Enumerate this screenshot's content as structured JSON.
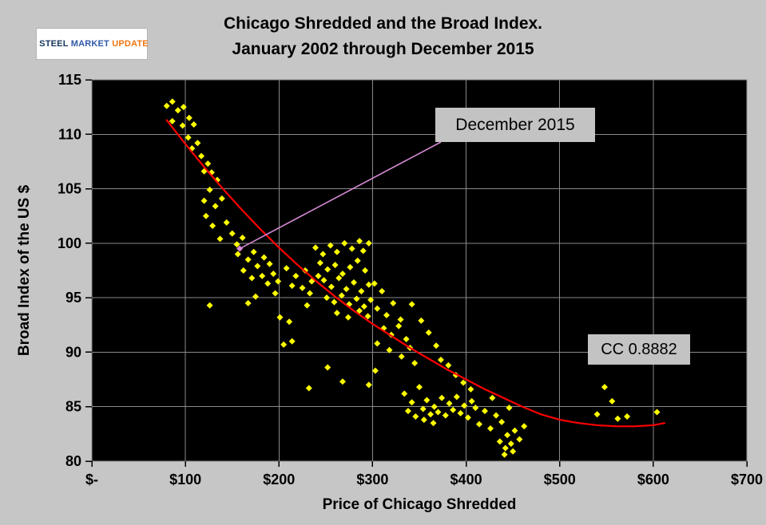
{
  "header": {
    "title_line1": "Chicago Shredded and the Broad Index.",
    "title_line2": "January 2002 through December 2015",
    "logo": {
      "word1": "STEEL",
      "word2": "MARKET",
      "word3": "UPDATE"
    }
  },
  "chart_data": {
    "type": "scatter",
    "title": "Chicago Shredded and the Broad Index. January 2002 through December 2015",
    "xlabel": "Price of Chicago Shredded",
    "ylabel": "Broad Index of the US $",
    "xlim": [
      0,
      700
    ],
    "ylim": [
      80,
      115
    ],
    "x_ticks": [
      0,
      100,
      200,
      300,
      400,
      500,
      600,
      700
    ],
    "x_tick_labels": [
      "$-",
      "$100",
      "$200",
      "$300",
      "$400",
      "$500",
      "$600",
      "$700"
    ],
    "y_ticks": [
      80,
      85,
      90,
      95,
      100,
      105,
      110,
      115
    ],
    "grid": true,
    "plot_bg": "#000000",
    "grid_color": "#8a8a8a",
    "point_color": "#ffff00",
    "trend_color": "#ff0000",
    "annotations": [
      {
        "id": "callout",
        "text": "December 2015"
      },
      {
        "id": "cc",
        "text": "CC 0.8882"
      }
    ],
    "highlight_point": {
      "x": 158,
      "y": 99.5,
      "color": "#d489d4"
    },
    "points": [
      [
        80,
        112.6
      ],
      [
        86,
        113.0
      ],
      [
        92,
        112.2
      ],
      [
        98,
        112.5
      ],
      [
        104,
        111.5
      ],
      [
        86,
        111.2
      ],
      [
        97,
        110.8
      ],
      [
        109,
        110.9
      ],
      [
        103,
        109.7
      ],
      [
        113,
        109.2
      ],
      [
        107,
        108.7
      ],
      [
        117,
        108.0
      ],
      [
        124,
        107.3
      ],
      [
        120,
        106.6
      ],
      [
        128,
        106.5
      ],
      [
        134,
        105.8
      ],
      [
        126,
        104.9
      ],
      [
        120,
        103.9
      ],
      [
        132,
        103.4
      ],
      [
        139,
        104.1
      ],
      [
        122,
        102.5
      ],
      [
        129,
        101.6
      ],
      [
        144,
        101.9
      ],
      [
        150,
        100.9
      ],
      [
        137,
        100.4
      ],
      [
        155,
        99.9
      ],
      [
        161,
        100.5
      ],
      [
        126,
        94.3
      ],
      [
        156,
        99.0
      ],
      [
        167,
        98.5
      ],
      [
        173,
        99.2
      ],
      [
        162,
        97.5
      ],
      [
        177,
        97.9
      ],
      [
        184,
        98.7
      ],
      [
        190,
        98.1
      ],
      [
        171,
        96.8
      ],
      [
        182,
        97.0
      ],
      [
        194,
        97.2
      ],
      [
        188,
        96.3
      ],
      [
        199,
        96.5
      ],
      [
        175,
        95.1
      ],
      [
        167,
        94.5
      ],
      [
        196,
        95.4
      ],
      [
        201,
        93.2
      ],
      [
        211,
        92.8
      ],
      [
        214,
        91.0
      ],
      [
        205,
        90.7
      ],
      [
        230,
        94.3
      ],
      [
        208,
        97.7
      ],
      [
        218,
        97.0
      ],
      [
        228,
        97.5
      ],
      [
        214,
        96.1
      ],
      [
        225,
        95.9
      ],
      [
        235,
        96.5
      ],
      [
        242,
        97.0
      ],
      [
        233,
        95.4
      ],
      [
        239,
        99.6
      ],
      [
        247,
        99.0
      ],
      [
        255,
        99.8
      ],
      [
        262,
        99.2
      ],
      [
        270,
        100.0
      ],
      [
        278,
        99.5
      ],
      [
        286,
        100.2
      ],
      [
        244,
        98.2
      ],
      [
        252,
        97.6
      ],
      [
        260,
        98.0
      ],
      [
        268,
        97.2
      ],
      [
        276,
        97.8
      ],
      [
        284,
        98.4
      ],
      [
        292,
        97.5
      ],
      [
        248,
        96.6
      ],
      [
        256,
        96.0
      ],
      [
        264,
        96.8
      ],
      [
        272,
        95.8
      ],
      [
        280,
        96.4
      ],
      [
        288,
        95.6
      ],
      [
        296,
        96.2
      ],
      [
        251,
        95.0
      ],
      [
        259,
        94.6
      ],
      [
        267,
        95.2
      ],
      [
        275,
        94.4
      ],
      [
        283,
        94.9
      ],
      [
        291,
        94.2
      ],
      [
        298,
        94.8
      ],
      [
        262,
        93.6
      ],
      [
        274,
        93.2
      ],
      [
        286,
        93.8
      ],
      [
        295,
        93.3
      ],
      [
        296,
        100.0
      ],
      [
        290,
        99.3
      ],
      [
        302,
        96.3
      ],
      [
        310,
        95.6
      ],
      [
        305,
        94.0
      ],
      [
        315,
        93.4
      ],
      [
        322,
        94.5
      ],
      [
        330,
        93.0
      ],
      [
        312,
        92.2
      ],
      [
        320,
        91.6
      ],
      [
        328,
        92.4
      ],
      [
        336,
        91.2
      ],
      [
        305,
        90.8
      ],
      [
        318,
        90.2
      ],
      [
        331,
        89.6
      ],
      [
        340,
        90.4
      ],
      [
        345,
        89.0
      ],
      [
        352,
        92.9
      ],
      [
        360,
        91.8
      ],
      [
        368,
        90.6
      ],
      [
        342,
        94.4
      ],
      [
        232,
        86.7
      ],
      [
        268,
        87.3
      ],
      [
        252,
        88.6
      ],
      [
        296,
        87.0
      ],
      [
        303,
        88.3
      ],
      [
        334,
        86.2
      ],
      [
        342,
        85.4
      ],
      [
        350,
        86.8
      ],
      [
        338,
        84.6
      ],
      [
        346,
        84.1
      ],
      [
        354,
        84.8
      ],
      [
        362,
        84.3
      ],
      [
        358,
        85.6
      ],
      [
        366,
        85.0
      ],
      [
        370,
        84.5
      ],
      [
        374,
        85.8
      ],
      [
        378,
        84.2
      ],
      [
        382,
        85.3
      ],
      [
        386,
        84.7
      ],
      [
        390,
        85.9
      ],
      [
        394,
        84.4
      ],
      [
        398,
        85.1
      ],
      [
        402,
        84.0
      ],
      [
        406,
        85.5
      ],
      [
        410,
        84.9
      ],
      [
        381,
        88.8
      ],
      [
        373,
        89.3
      ],
      [
        389,
        87.9
      ],
      [
        397,
        87.2
      ],
      [
        405,
        86.6
      ],
      [
        355,
        83.8
      ],
      [
        365,
        83.5
      ],
      [
        414,
        83.4
      ],
      [
        420,
        84.6
      ],
      [
        426,
        83.0
      ],
      [
        432,
        84.2
      ],
      [
        438,
        83.6
      ],
      [
        444,
        82.4
      ],
      [
        436,
        81.8
      ],
      [
        442,
        81.2
      ],
      [
        448,
        81.6
      ],
      [
        452,
        82.8
      ],
      [
        428,
        85.8
      ],
      [
        446,
        84.9
      ],
      [
        450,
        80.9
      ],
      [
        441,
        80.6
      ],
      [
        457,
        82.0
      ],
      [
        462,
        83.2
      ],
      [
        540,
        84.3
      ],
      [
        548,
        86.8
      ],
      [
        556,
        85.5
      ],
      [
        562,
        83.9
      ],
      [
        572,
        84.1
      ],
      [
        604,
        84.5
      ]
    ],
    "trendline": [
      [
        80,
        111.3
      ],
      [
        100,
        109.1
      ],
      [
        120,
        107.0
      ],
      [
        140,
        105.0
      ],
      [
        160,
        103.1
      ],
      [
        180,
        101.3
      ],
      [
        200,
        99.6
      ],
      [
        220,
        98.0
      ],
      [
        240,
        96.5
      ],
      [
        260,
        95.1
      ],
      [
        280,
        93.8
      ],
      [
        300,
        92.6
      ],
      [
        320,
        91.5
      ],
      [
        340,
        90.4
      ],
      [
        360,
        89.4
      ],
      [
        380,
        88.4
      ],
      [
        400,
        87.5
      ],
      [
        420,
        86.6
      ],
      [
        440,
        85.8
      ],
      [
        460,
        85.0
      ],
      [
        480,
        84.3
      ],
      [
        500,
        83.8
      ],
      [
        520,
        83.5
      ],
      [
        540,
        83.3
      ],
      [
        560,
        83.2
      ],
      [
        580,
        83.2
      ],
      [
        600,
        83.3
      ],
      [
        612,
        83.5
      ]
    ]
  }
}
